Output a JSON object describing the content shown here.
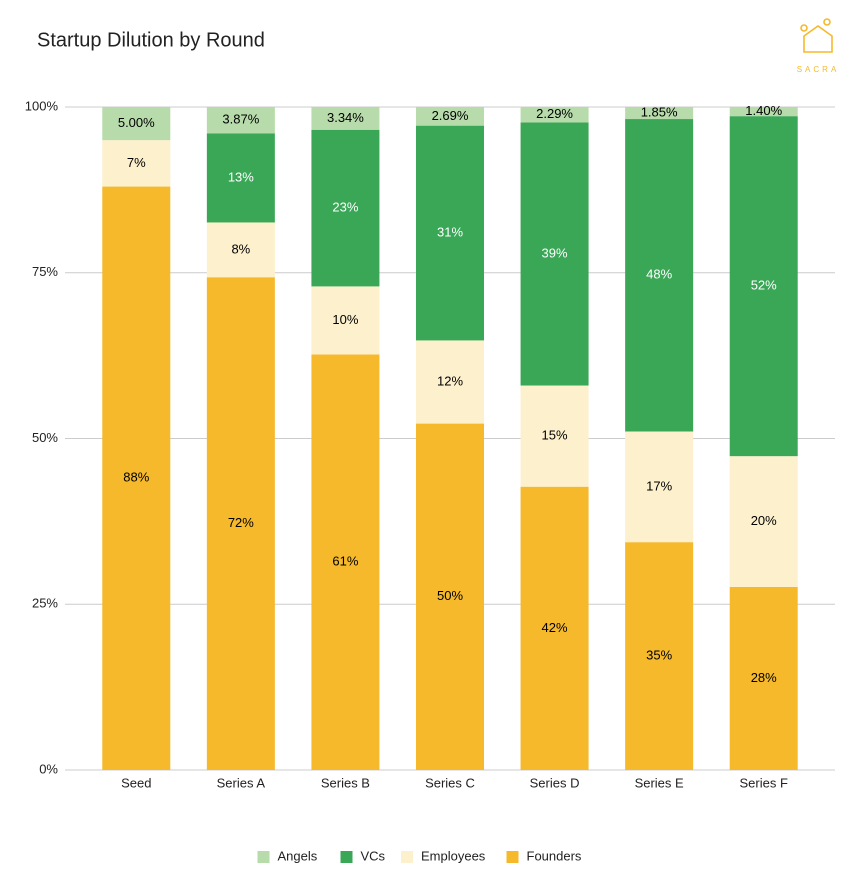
{
  "chart_data": {
    "type": "bar",
    "stacked": "percent",
    "title": "Startup Dilution by Round",
    "logo_text": "SACRA",
    "categories": [
      "Seed",
      "Series A",
      "Series B",
      "Series C",
      "Series D",
      "Series E",
      "Series F"
    ],
    "series": [
      {
        "name": "Angels",
        "color": "#b7dbab",
        "label_color": "#000000",
        "values": [
          5,
          3.87,
          3.34,
          2.69,
          2.29,
          1.85,
          1.4
        ],
        "value_labels": [
          "5.00%",
          "3.87%",
          "3.34%",
          "2.69%",
          "2.29%",
          "1.85%",
          "1.40%"
        ]
      },
      {
        "name": "VCs",
        "color": "#3aa757",
        "label_color": "#ffffff",
        "values": [
          null,
          13,
          23,
          31,
          39,
          48,
          52
        ],
        "value_labels": [
          null,
          "13%",
          "23%",
          "31%",
          "39%",
          "48%",
          "52%"
        ]
      },
      {
        "name": "Employees",
        "color": "#fdf0cd",
        "label_color": "#000000",
        "values": [
          7,
          8,
          10,
          12,
          15,
          17,
          20
        ],
        "value_labels": [
          "7%",
          "8%",
          "10%",
          "12%",
          "15%",
          "17%",
          "20%"
        ]
      },
      {
        "name": "Founders",
        "color": "#f6b92b",
        "label_color": "#000000",
        "values": [
          88,
          72,
          61,
          50,
          42,
          35,
          28
        ],
        "value_labels": [
          "88%",
          "72%",
          "61%",
          "50%",
          "42%",
          "35%",
          "28%"
        ]
      }
    ],
    "ylim": [
      0,
      100
    ],
    "yticks": [
      {
        "value": 0,
        "label": "0%"
      },
      {
        "value": 25,
        "label": "25%"
      },
      {
        "value": 50,
        "label": "50%"
      },
      {
        "value": 75,
        "label": "75%"
      },
      {
        "value": 100,
        "label": "100%"
      }
    ],
    "grid": true,
    "legend": "bottom"
  }
}
